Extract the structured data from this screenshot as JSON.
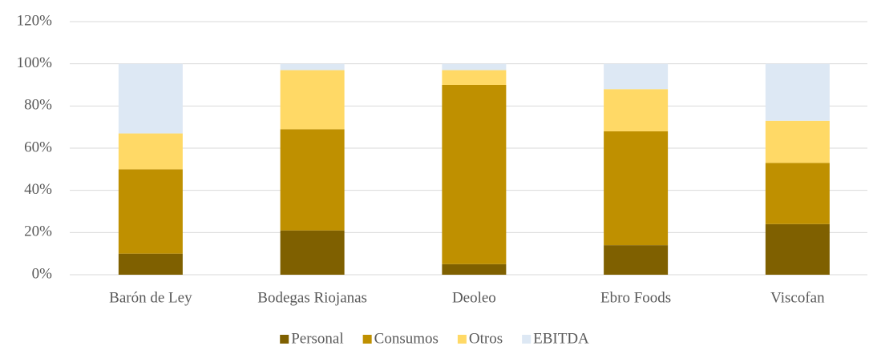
{
  "chart_data": {
    "type": "stacked_bar",
    "categories": [
      "Barón de Ley",
      "Bodegas Riojanas",
      "Deoleo",
      "Ebro Foods",
      "Viscofan"
    ],
    "series": [
      {
        "name": "Personal",
        "color": "#7f6000",
        "values": [
          10,
          21,
          5,
          14,
          24
        ]
      },
      {
        "name": "Consumos",
        "color": "#bf9000",
        "values": [
          40,
          48,
          85,
          54,
          29
        ]
      },
      {
        "name": "Otros",
        "color": "#ffd966",
        "values": [
          17,
          28,
          7,
          20,
          20
        ]
      },
      {
        "name": "EBITDA",
        "color": "#dde8f4",
        "values": [
          33,
          3,
          3,
          12,
          27
        ]
      }
    ],
    "ylim": [
      0,
      120
    ],
    "yticks": [
      {
        "value": 0,
        "label": "0%"
      },
      {
        "value": 20,
        "label": "20%"
      },
      {
        "value": 40,
        "label": "40%"
      },
      {
        "value": 60,
        "label": "60%"
      },
      {
        "value": 80,
        "label": "80%"
      },
      {
        "value": 100,
        "label": "100%"
      },
      {
        "value": 120,
        "label": "120%"
      }
    ],
    "grid": true,
    "legend": "bottom"
  }
}
